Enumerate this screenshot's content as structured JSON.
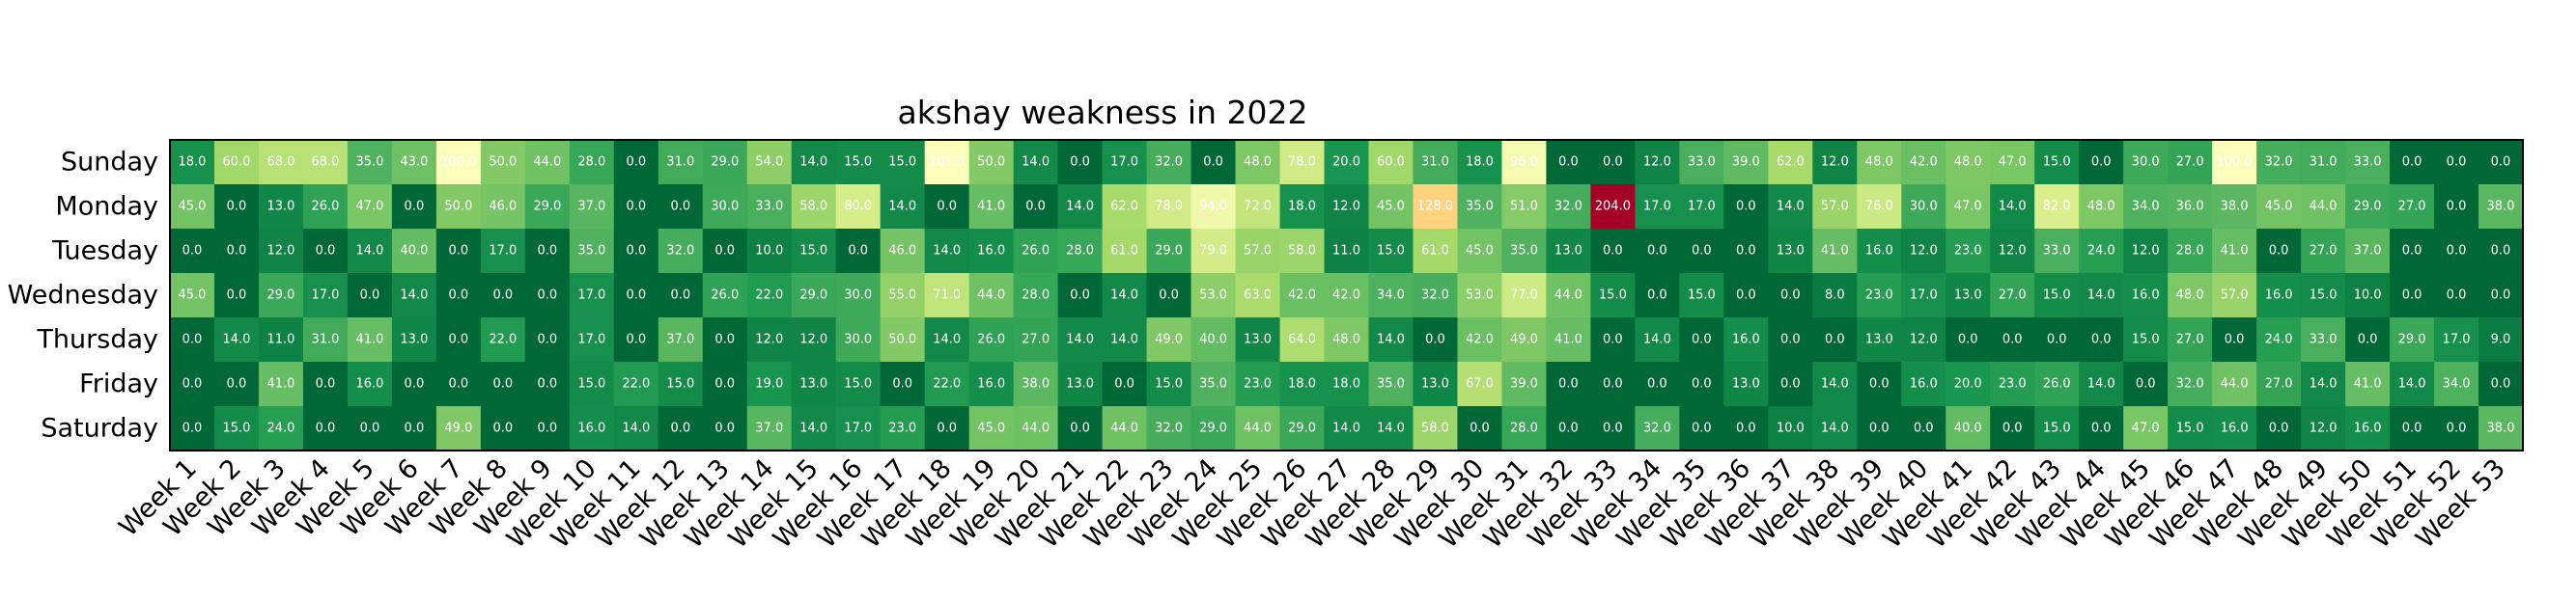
{
  "chart_data": {
    "type": "heatmap",
    "title": "akshay weakness in 2022",
    "colormap": "RdYlGn_r",
    "vmin": 0,
    "vmax": 204,
    "rows": [
      "Sunday",
      "Monday",
      "Tuesday",
      "Wednesday",
      "Thursday",
      "Friday",
      "Saturday"
    ],
    "columns": [
      "Week 1",
      "Week 2",
      "Week 3",
      "Week 4",
      "Week 5",
      "Week 6",
      "Week 7",
      "Week 8",
      "Week 9",
      "Week 10",
      "Week 11",
      "Week 12",
      "Week 13",
      "Week 14",
      "Week 15",
      "Week 16",
      "Week 17",
      "Week 18",
      "Week 19",
      "Week 20",
      "Week 21",
      "Week 22",
      "Week 23",
      "Week 24",
      "Week 25",
      "Week 26",
      "Week 27",
      "Week 28",
      "Week 29",
      "Week 30",
      "Week 31",
      "Week 32",
      "Week 33",
      "Week 34",
      "Week 35",
      "Week 36",
      "Week 37",
      "Week 38",
      "Week 39",
      "Week 40",
      "Week 41",
      "Week 42",
      "Week 43",
      "Week 44",
      "Week 45",
      "Week 46",
      "Week 47",
      "Week 48",
      "Week 49",
      "Week 50",
      "Week 51",
      "Week 52",
      "Week 53"
    ],
    "values": [
      [
        18,
        60,
        68,
        68,
        35,
        43,
        100,
        50,
        44,
        28,
        0,
        31,
        29,
        54,
        14,
        15,
        15,
        101,
        50,
        14,
        0,
        17,
        32,
        0,
        48,
        78,
        20,
        60,
        31,
        18,
        96,
        0,
        0,
        12,
        33,
        39,
        62,
        12,
        48,
        42,
        48,
        47,
        15,
        0,
        30,
        27,
        100,
        32,
        31,
        33,
        0,
        0,
        0
      ],
      [
        45,
        0,
        13,
        26,
        47,
        0,
        50,
        46,
        29,
        37,
        0,
        0,
        30,
        33,
        58,
        80,
        14,
        0,
        41,
        0,
        14,
        62,
        78,
        94,
        72,
        18,
        12,
        45,
        128,
        35,
        51,
        32,
        204,
        17,
        17,
        0,
        14,
        57,
        76,
        30,
        47,
        14,
        82,
        48,
        34,
        36,
        38,
        45,
        44,
        29,
        27,
        0,
        38
      ],
      [
        0,
        0,
        12,
        0,
        14,
        40,
        0,
        17,
        0,
        35,
        0,
        32,
        0,
        10,
        15,
        0,
        46,
        14,
        16,
        26,
        28,
        61,
        29,
        79,
        57,
        58,
        11,
        15,
        61,
        45,
        35,
        13,
        0,
        0,
        0,
        0,
        13,
        41,
        16,
        12,
        23,
        12,
        33,
        24,
        12,
        28,
        41,
        0,
        27,
        37,
        0,
        0,
        0
      ],
      [
        45,
        0,
        29,
        17,
        0,
        14,
        0,
        0,
        0,
        17,
        0,
        0,
        26,
        22,
        29,
        30,
        55,
        71,
        44,
        28,
        0,
        14,
        0,
        53,
        63,
        42,
        42,
        34,
        32,
        53,
        77,
        44,
        15,
        0,
        15,
        0,
        0,
        8,
        23,
        17,
        13,
        27,
        15,
        14,
        16,
        48,
        57,
        16,
        15,
        10,
        0,
        0,
        0
      ],
      [
        0,
        14,
        11,
        31,
        41,
        13,
        0,
        22,
        0,
        17,
        0,
        37,
        0,
        12,
        12,
        30,
        50,
        14,
        26,
        27,
        14,
        14,
        49,
        40,
        13,
        64,
        48,
        14,
        0,
        42,
        49,
        41,
        0,
        14,
        0,
        16,
        0,
        0,
        13,
        12,
        0,
        0,
        0,
        0,
        15,
        27,
        0,
        24,
        33,
        0,
        29,
        17,
        9
      ],
      [
        0,
        0,
        41,
        0,
        16,
        0,
        0,
        0,
        0,
        15,
        22,
        15,
        0,
        19,
        13,
        15,
        0,
        22,
        16,
        38,
        13,
        0,
        15,
        35,
        23,
        18,
        18,
        35,
        13,
        67,
        39,
        0,
        0,
        0,
        0,
        13,
        0,
        14,
        0,
        16,
        20,
        23,
        26,
        14,
        0,
        32,
        44,
        27,
        14,
        41,
        14,
        34,
        0
      ],
      [
        0,
        15,
        24,
        0,
        0,
        0,
        49,
        0,
        0,
        16,
        14,
        0,
        0,
        37,
        14,
        17,
        23,
        0,
        45,
        44,
        0,
        44,
        32,
        29,
        44,
        29,
        14,
        14,
        58,
        0,
        28,
        0,
        0,
        32,
        0,
        0,
        10,
        14,
        0,
        0,
        40,
        0,
        15,
        0,
        47,
        15,
        16,
        0,
        12,
        16,
        0,
        0,
        38
      ]
    ]
  }
}
